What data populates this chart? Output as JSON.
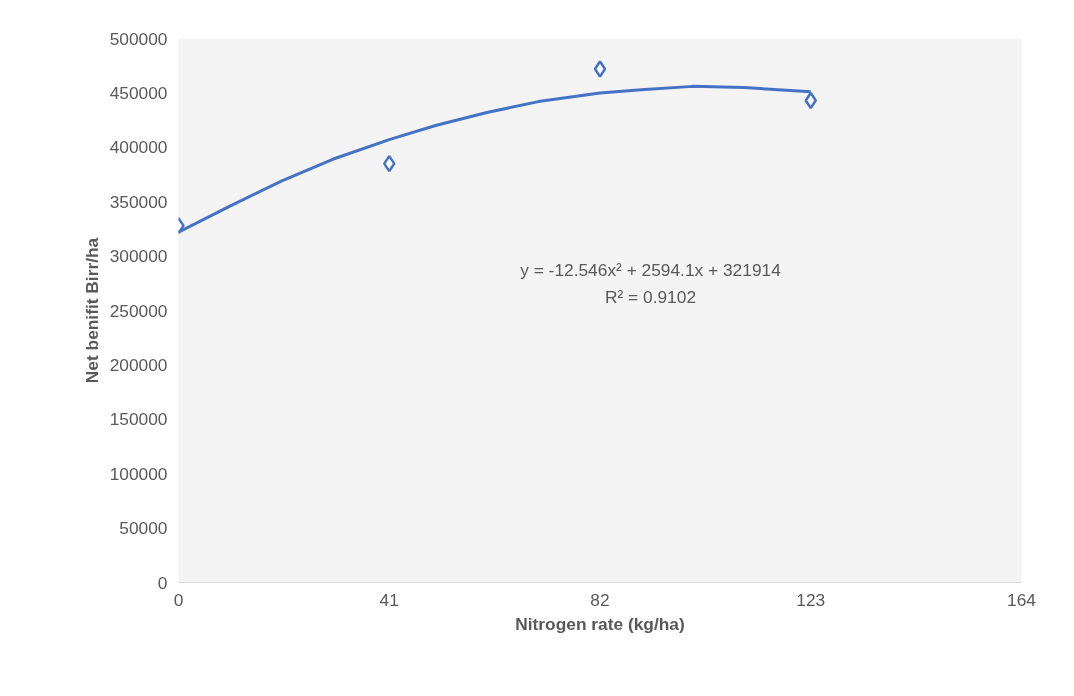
{
  "chart_data": {
    "type": "scatter",
    "xlabel": "Nitrogen rate (kg/ha)",
    "ylabel": "Net benifit Birr/ha",
    "xlim": [
      0,
      164
    ],
    "xticks": [
      0,
      41,
      82,
      123,
      164
    ],
    "ylim": [
      0,
      500000
    ],
    "yticks": [
      0,
      50000,
      100000,
      150000,
      200000,
      250000,
      300000,
      350000,
      400000,
      450000,
      500000
    ],
    "grid": false,
    "marker": "diamond",
    "series": [
      {
        "color": "#4472c4",
        "x": [
          0,
          41,
          82,
          123
        ],
        "values": [
          328000,
          385000,
          472000,
          443000
        ]
      },
      {
        "type": "line",
        "marker": "none",
        "color": "#4472c4",
        "x": [
          0,
          10,
          20,
          30,
          41,
          50,
          60,
          70,
          82,
          90,
          100,
          110,
          123
        ],
        "values": [
          322000,
          346000,
          369000,
          389000,
          407000,
          420000,
          432000,
          442000,
          450000,
          453000,
          456000,
          455000,
          451000
        ]
      }
    ],
    "annotations": [
      "y = -12.546x² + 2594.1x + 321914",
      "R² = 0.9102"
    ]
  }
}
